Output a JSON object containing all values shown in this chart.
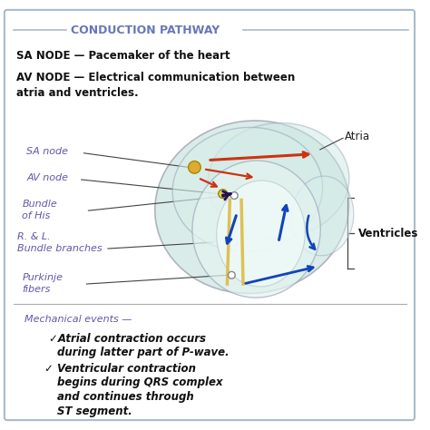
{
  "title": "CONDUCTION PATHWAY",
  "title_color": "#6677bb",
  "background_color": "#ffffff",
  "border_color": "#aabbcc",
  "sa_node_text": "SA NODE — Pacemaker of the heart",
  "av_node_text_1": "AV NODE — Electrical communication between",
  "av_node_text_2": "atria and ventricles.",
  "label_sa": "SA node",
  "label_av": "AV node",
  "label_bundle_1": "Bundle",
  "label_bundle_2": "of His",
  "label_rl_1": "R. & L.",
  "label_rl_2": "Bundle branches",
  "label_purkinje_1": "Purkinje",
  "label_purkinje_2": "fibers",
  "label_atria": "Atria",
  "label_ventricles": "Ventricles",
  "mechanical_events": "Mechanical events —",
  "bullet1_line1": "✓Atrial contraction occurs",
  "bullet1_line2": "during latter part of P-wave.",
  "bullet2_line1": "✓ Ventricular contraction",
  "bullet2_line2": "begins during QRS complex",
  "bullet2_line3": "and continues through",
  "bullet2_line4": "ST segment.",
  "label_color": "#6655aa",
  "arrow_red": "#cc3311",
  "arrow_blue": "#1144bb",
  "arrow_dark": "#221155",
  "node_sa_color": "#ddaa33",
  "node_av_color": "#ddcc66"
}
